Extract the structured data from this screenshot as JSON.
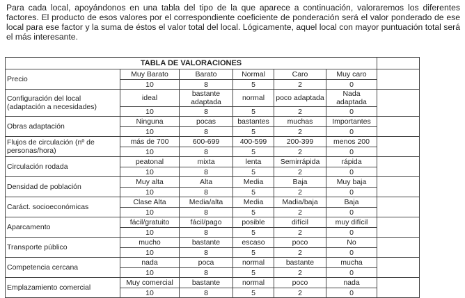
{
  "intro": "Para cada local, apoyándonos en una tabla del tipo de la que aparece a continuación, valoraremos los diferentes factores. El producto de esos valores por el correspondiente coeficiente de ponderación será el valor ponderado de ese local para ese factor y la suma de éstos el valor total del local. Lógicamente, aquel local con mayor puntuación total será el más interesante.",
  "table": {
    "title": "TABLA DE VALORACIONES",
    "scores": [
      "10",
      "8",
      "5",
      "2",
      "0"
    ],
    "rows": [
      {
        "factor": "Precio",
        "options": [
          "Muy Barato",
          "Barato",
          "Normal",
          "Caro",
          "Muy caro"
        ]
      },
      {
        "factor": "Configuración del local (adaptación a necesidades)",
        "options": [
          "ideal",
          "bastante adaptada",
          "normal",
          "poco adaptada",
          "Nada adaptada"
        ]
      },
      {
        "factor": "Obras adaptación",
        "options": [
          "Ninguna",
          "pocas",
          "bastantes",
          "muchas",
          "Importantes"
        ]
      },
      {
        "factor": "Flujos de circulación (nº de personas/hora)",
        "options": [
          "más de 700",
          "600-699",
          "400-599",
          "200-399",
          "menos 200"
        ]
      },
      {
        "factor": "Circulación rodada",
        "options": [
          "peatonal",
          "mixta",
          "lenta",
          "Semirrápida",
          "rápida"
        ]
      },
      {
        "factor": "Densidad de población",
        "options": [
          "Muy alta",
          "Alta",
          "Media",
          "Baja",
          "Muy baja"
        ]
      },
      {
        "factor": "Caráct. socioeconómicas",
        "options": [
          "Clase Alta",
          "Media/alta",
          "Media",
          "Madia/baja",
          "Baja"
        ]
      },
      {
        "factor": "Aparcamento",
        "options": [
          "fácil/gratuito",
          "fácil/pago",
          "posible",
          "difícil",
          "muy difícil"
        ]
      },
      {
        "factor": "Transporte público",
        "options": [
          "mucho",
          "bastante",
          "escaso",
          "poco",
          "No"
        ]
      },
      {
        "factor": "Competencia cercana",
        "options": [
          "nada",
          "poca",
          "normal",
          "bastante",
          "mucha"
        ]
      },
      {
        "factor": "Emplazamiento comercial",
        "options": [
          "Muy comercial",
          "bastante",
          "normal",
          "poco",
          "nada"
        ]
      }
    ]
  }
}
